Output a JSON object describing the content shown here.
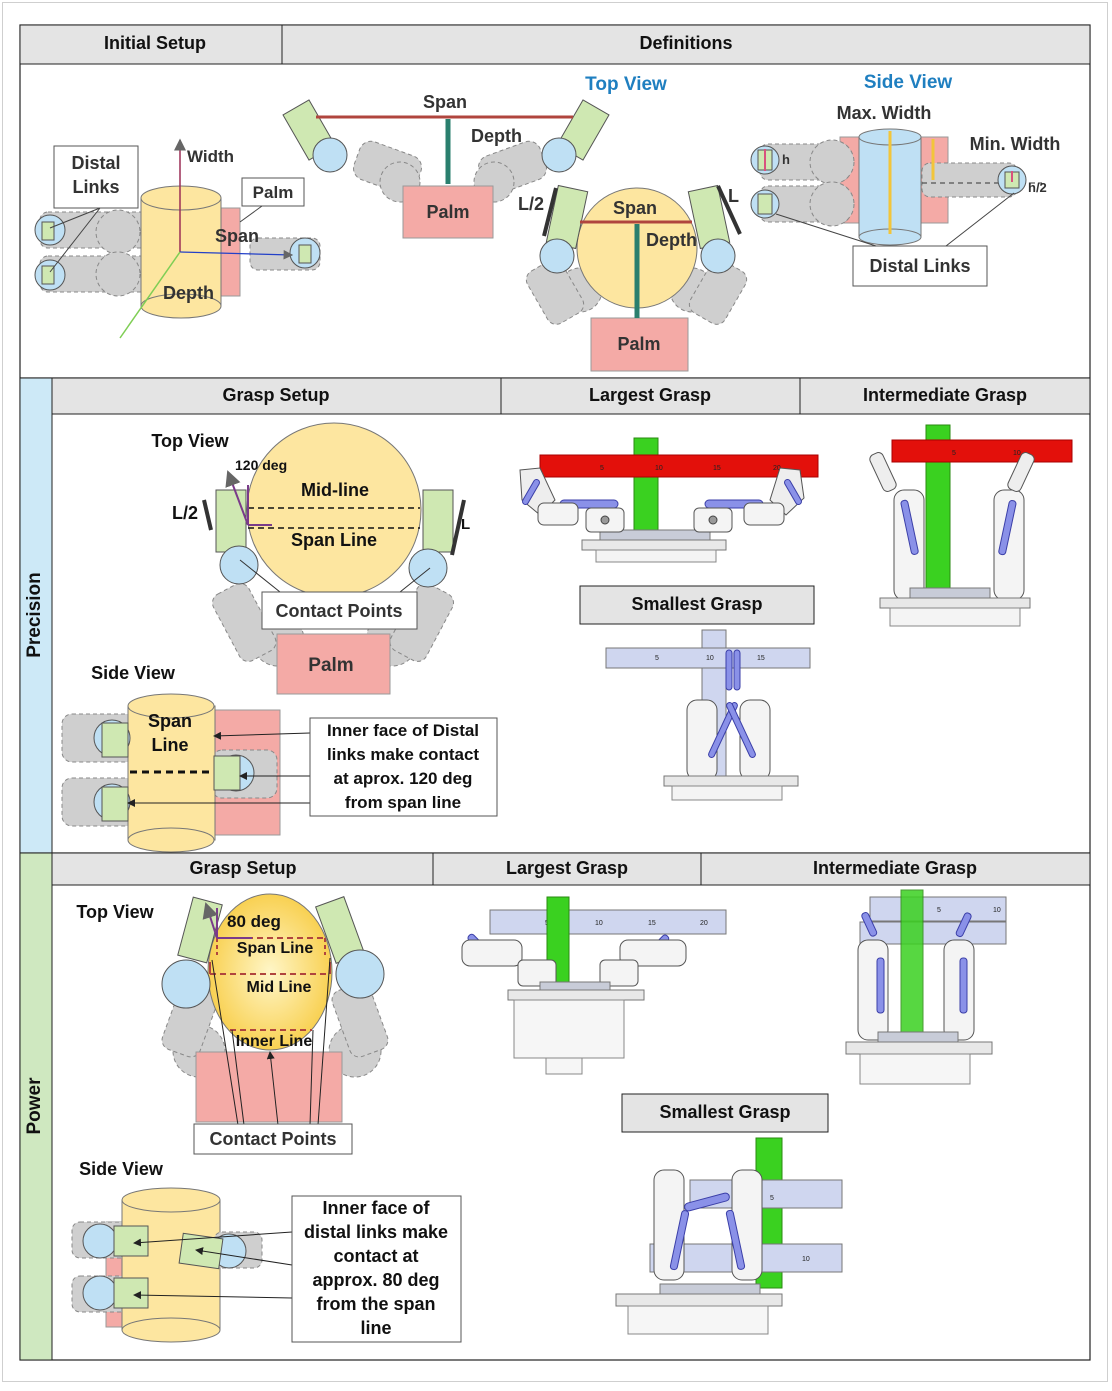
{
  "header": {
    "initial_setup": "Initial Setup",
    "definitions": "Definitions"
  },
  "definitions": {
    "top_view": "Top View",
    "side_view": "Side View",
    "distal": "Distal",
    "links": "Links",
    "width": "Width",
    "palm": "Palm",
    "span": "Span",
    "depth": "Depth",
    "l_half": "L/2",
    "l": "L",
    "max_width": "Max. Width",
    "min_width": "Min. Width",
    "h": "h",
    "h_half": "h/2",
    "distal_links": "Distal Links"
  },
  "precision": {
    "label": "Precision",
    "grasp_setup": "Grasp Setup",
    "largest_grasp": "Largest Grasp",
    "intermediate_grasp": "Intermediate Grasp",
    "smallest_grasp": "Smallest Grasp",
    "top_view": "Top View",
    "angle": "120 deg",
    "mid_line": "Mid-line",
    "span_line": "Span Line",
    "l_half": "L/2",
    "l": "L",
    "contact_points": "Contact Points",
    "palm": "Palm",
    "side_view": "Side View",
    "side_span": "Span",
    "side_line": "Line",
    "note": [
      "Inner face of Distal",
      "links make contact",
      "at aprox. 120 deg",
      "from span line"
    ]
  },
  "power": {
    "label": "Power",
    "grasp_setup": "Grasp Setup",
    "largest_grasp": "Largest Grasp",
    "intermediate_grasp": "Intermediate Grasp",
    "smallest_grasp": "Smallest Grasp",
    "top_view": "Top View",
    "angle": "80 deg",
    "span_line": "Span Line",
    "mid_line": "Mid Line",
    "inner_line": "Inner Line",
    "contact_points": "Contact Points",
    "side_view": "Side View",
    "note": [
      "Inner face of",
      "distal links make",
      "contact at",
      "approx. 80 deg",
      "from the span",
      "line"
    ]
  },
  "ruler_ticks": {
    "prec_large": [
      "5",
      "10",
      "15",
      "20"
    ],
    "prec_inter": [
      "5",
      "10"
    ],
    "prec_small": [
      "5",
      "10",
      "15"
    ],
    "pow_large": [
      "5",
      "10",
      "15",
      "20"
    ],
    "pow_inter": [
      "5",
      "10"
    ],
    "pow_small": [
      "5",
      "10"
    ]
  },
  "colors": {
    "header_gray": "#e4e4e4",
    "precision_band": "#cde9f7",
    "power_band": "#cfe8c0",
    "palm_pink": "#f4aaa6",
    "object_yellow": "#fde6a0",
    "contact_blue": "#bfe0f4",
    "link_green": "#cfe8b2",
    "link_gray": "#cfcfcf",
    "title_blue": "#1f7fc0",
    "depth_teal": "#2a7f6e",
    "span_red": "#b0453e",
    "ruler_red": "#e3100b",
    "ruler_green": "#3ad120",
    "ruler_lavender": "#cfd6ef"
  }
}
